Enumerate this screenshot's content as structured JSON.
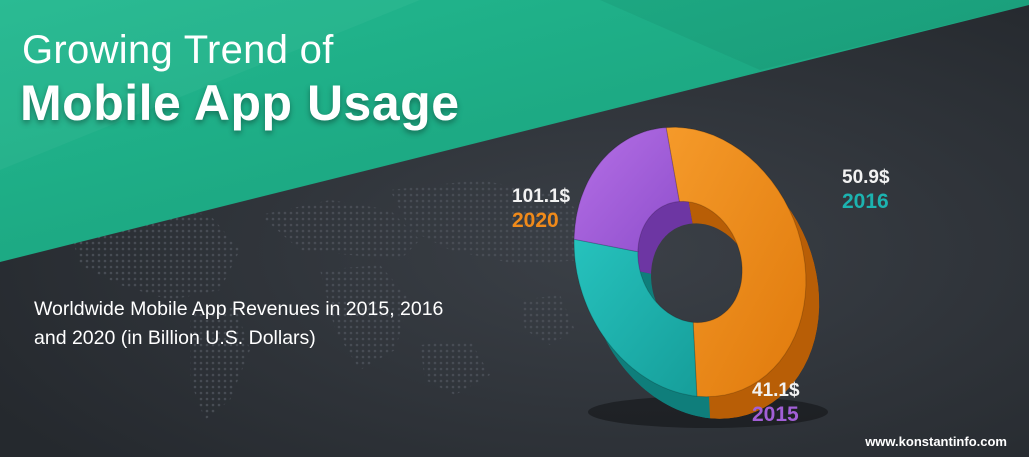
{
  "header": {
    "title_line1": "Growing Trend of",
    "title_line2": "Mobile App Usage"
  },
  "subtitle": "Worldwide Mobile App Revenues in 2015, 2016 and 2020 (in Billion U.S. Dollars)",
  "footer": {
    "url": "www.konstantinfo.com"
  },
  "colors": {
    "background": "#2b2f35",
    "banner": "#1fae86",
    "series_2020": "#f08a1a",
    "series_2016": "#1cb3b0",
    "series_2015": "#a25fd6"
  },
  "chart_data": {
    "type": "pie",
    "style": "3d-donut",
    "categories": [
      "2015",
      "2016",
      "2020"
    ],
    "values": [
      41.1,
      50.9,
      101.1
    ],
    "value_labels": [
      "41.1$",
      "50.9$",
      "101.1$"
    ]
  }
}
